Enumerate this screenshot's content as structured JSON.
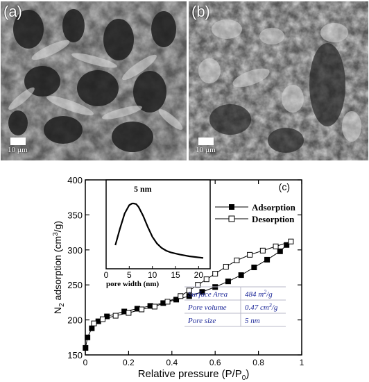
{
  "sem_panels": [
    {
      "label": "(a)",
      "scale_label": "10 µm"
    },
    {
      "label": "(b)",
      "scale_label": "10 µm"
    }
  ],
  "chart_data": {
    "type": "line",
    "panel_label": "(c)",
    "xlabel": "Relative pressure (P/P",
    "xlabel_sub": "0",
    "xlabel_end": ")",
    "ylabel_pre": "N",
    "ylabel_sub": "2",
    "ylabel_post": " adsorption (cm",
    "ylabel_sup": "3",
    "ylabel_end": "/g)",
    "xlim": [
      0,
      1
    ],
    "ylim": [
      150,
      400
    ],
    "x_ticks": [
      "0",
      "0.2",
      "0.4",
      "0.6",
      "0.8",
      "1"
    ],
    "x_tick_values": [
      0,
      0.2,
      0.4,
      0.6,
      0.8,
      1
    ],
    "y_ticks": [
      "150",
      "200",
      "250",
      "300",
      "350",
      "400"
    ],
    "y_tick_values": [
      150,
      200,
      250,
      300,
      350,
      400
    ],
    "legend": [
      "Adsorption",
      "Desorption"
    ],
    "series": [
      {
        "name": "Adsorption",
        "marker": "filled-square",
        "x": [
          0.001,
          0.01,
          0.03,
          0.06,
          0.1,
          0.18,
          0.24,
          0.3,
          0.36,
          0.42,
          0.48,
          0.54,
          0.6,
          0.66,
          0.72,
          0.78,
          0.84,
          0.9,
          0.93
        ],
        "y": [
          160,
          175,
          188,
          198,
          205,
          212,
          216,
          220,
          224,
          229,
          234,
          240,
          247,
          255,
          264,
          275,
          286,
          298,
          307
        ]
      },
      {
        "name": "Desorption",
        "marker": "open-square",
        "x": [
          0.04,
          0.08,
          0.14,
          0.2,
          0.26,
          0.32,
          0.38,
          0.44,
          0.48,
          0.52,
          0.56,
          0.6,
          0.65,
          0.7,
          0.76,
          0.82,
          0.88,
          0.95
        ],
        "y": [
          195,
          201,
          206,
          210,
          215,
          219,
          226,
          234,
          242,
          250,
          258,
          266,
          276,
          285,
          293,
          299,
          305,
          312
        ]
      }
    ],
    "inset": {
      "title": "5 nm",
      "xlabel": "pore width (nm)",
      "x_ticks": [
        "0",
        "5",
        "10",
        "15",
        "20"
      ],
      "x_tick_values": [
        0,
        5,
        10,
        15,
        20
      ],
      "xlim": [
        0,
        22.5
      ],
      "curve": {
        "x": [
          2,
          3,
          4,
          5,
          5.6,
          6,
          6.5,
          7,
          8,
          9,
          10,
          11,
          12,
          13,
          14,
          16,
          18,
          20,
          21
        ],
        "y": [
          0.25,
          0.55,
          0.82,
          0.97,
          1.0,
          1.0,
          0.99,
          0.94,
          0.78,
          0.58,
          0.4,
          0.28,
          0.2,
          0.15,
          0.12,
          0.08,
          0.05,
          0.03,
          0.02
        ]
      }
    },
    "table": [
      {
        "label": "Surface Area",
        "value": "484 m",
        "sup": "2",
        "unit": "/g"
      },
      {
        "label": "Pore volume",
        "value": "0.47 cm",
        "sup": "3",
        "unit": "/g"
      },
      {
        "label": "Pore size",
        "value": "5 nm",
        "sup": "",
        "unit": ""
      }
    ]
  }
}
